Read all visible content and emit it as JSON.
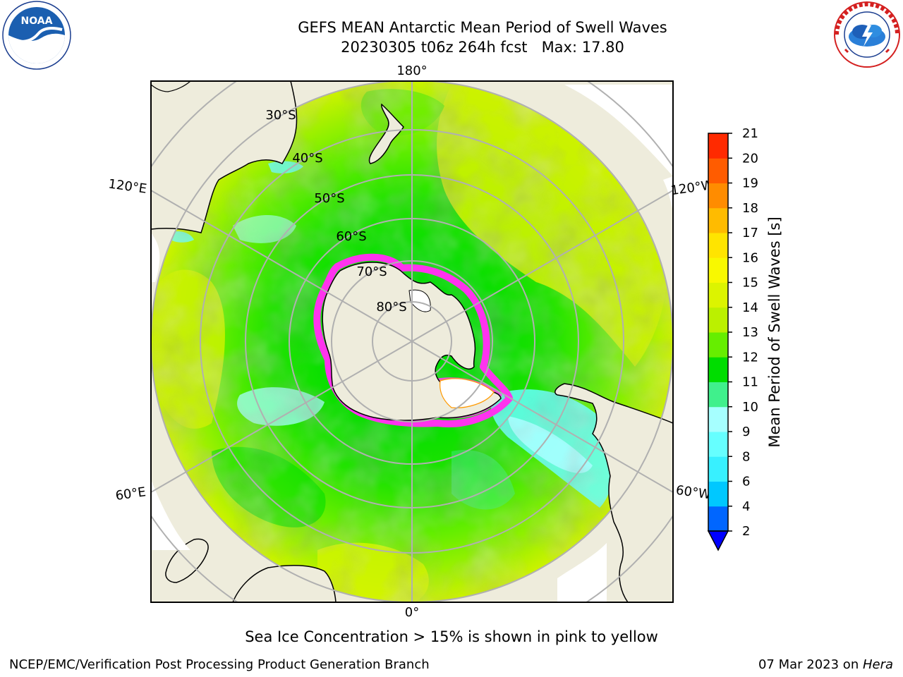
{
  "header": {
    "title_line1": "GEFS MEAN Antarctic Mean Period of Swell Waves",
    "title_line2": "20230305 t06z 264h fcst   Max: 17.80"
  },
  "logos": {
    "left": "noaa-logo",
    "left_text": "NOAA",
    "right": "national-weather-service-logo"
  },
  "map": {
    "projection": "south-polar-stereographic",
    "center_lat": -90,
    "boundary_lat": -30,
    "lon_labels": [
      {
        "text": "180°",
        "lon": 180
      },
      {
        "text": "120°E",
        "lon": 120
      },
      {
        "text": "120°W",
        "lon": -120
      },
      {
        "text": "60°E",
        "lon": 60
      },
      {
        "text": "60°W",
        "lon": -60
      },
      {
        "text": "0°",
        "lon": 0
      }
    ],
    "lat_labels": [
      "30°S",
      "40°S",
      "50°S",
      "60°S",
      "70°S",
      "80°S"
    ],
    "colors": {
      "land": "#eeecdc",
      "ocean_mask": "#ffffff",
      "grid": "#b0b0b0"
    }
  },
  "colorbar": {
    "label": "Mean Period of Swell Waves [s]",
    "ticks": [
      "2",
      "4",
      "6",
      "8",
      "9",
      "10",
      "11",
      "12",
      "13",
      "14",
      "15",
      "16",
      "17",
      "18",
      "19",
      "20",
      "21"
    ],
    "colors": [
      "#0066ff",
      "#00c8ff",
      "#38f0ff",
      "#66ffff",
      "#a6ffff",
      "#40f08c",
      "#00dd00",
      "#66ee00",
      "#bbf000",
      "#dcf400",
      "#f8f800",
      "#ffe400",
      "#ffbb00",
      "#ff8c00",
      "#ff5c00",
      "#ff2a00"
    ],
    "under_color": "#0000ff"
  },
  "caption": "Sea Ice Concentration > 15% is shown in pink to yellow",
  "footer": {
    "left": "NCEP/EMC/Verification Post Processing Product Generation Branch",
    "date": "07 Mar 2023 on ",
    "host": "Hera"
  }
}
